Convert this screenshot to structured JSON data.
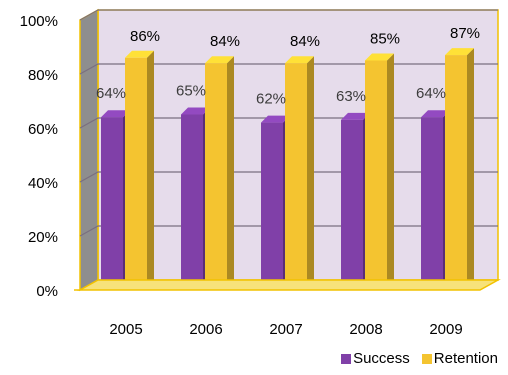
{
  "chart_data": {
    "type": "bar",
    "categories": [
      "2005",
      "2006",
      "2007",
      "2008",
      "2009"
    ],
    "series": [
      {
        "name": "Success",
        "values": [
          64,
          65,
          62,
          63,
          64
        ],
        "labels": [
          "64%",
          "65%",
          "62%",
          "63%",
          "64%"
        ],
        "color": "#8040A8"
      },
      {
        "name": "Retention",
        "values": [
          86,
          84,
          84,
          85,
          87
        ],
        "labels": [
          "86%",
          "84%",
          "84%",
          "85%",
          "87%"
        ],
        "color": "#F4C430"
      }
    ],
    "title": "",
    "xlabel": "",
    "ylabel": "",
    "ylim": [
      0,
      100
    ],
    "yticks": [
      "0%",
      "20%",
      "40%",
      "60%",
      "80%",
      "100%"
    ],
    "grid": true,
    "legend_position": "bottom-right",
    "colors": {
      "plot_background": "#E6DCEB",
      "floor_and_frame": "#F2C200",
      "gridline": "#7A6F80"
    }
  }
}
